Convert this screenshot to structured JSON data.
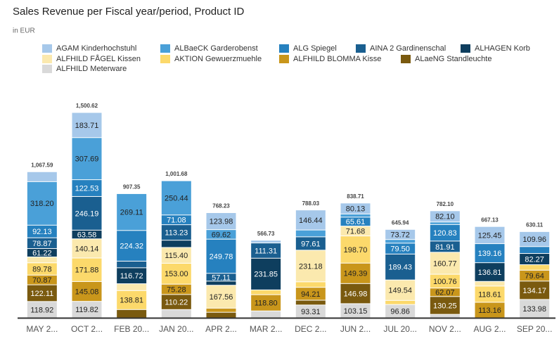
{
  "chart_data": {
    "type": "stacked_bar",
    "title": "Sales Revenue per Fiscal year/period, Product ID",
    "subtitle": "in EUR",
    "categories": [
      "MAY 2...",
      "OCT 2...",
      "FEB 20...",
      "JAN 20...",
      "APR 2...",
      "MAR 2...",
      "DEC 2...",
      "JUN 2...",
      "JUL 20...",
      "NOV 2...",
      "AUG 2...",
      "SEP 20..."
    ],
    "totals": [
      1067.59,
      1500.62,
      907.35,
      1001.68,
      768.23,
      566.73,
      788.03,
      838.71,
      645.94,
      782.1,
      667.13,
      630.11
    ],
    "total_labels": [
      "1,067.59",
      "1,500.62",
      "907.35",
      "1,001.68",
      "768.23",
      "566.73",
      "788.03",
      "838.71",
      "645.94",
      "782.10",
      "667.13",
      "630.11"
    ],
    "series": [
      {
        "name": "AGAM Kinderhochstuhl",
        "color": "#a6c8ea",
        "values": [
          72.49,
          183.71,
          null,
          null,
          123.98,
          20,
          146.44,
          80.13,
          73.72,
          82.1,
          125.45,
          109.96
        ],
        "value_labels": [
          null,
          "183.71",
          null,
          null,
          "123.98",
          null,
          "146.44",
          "80.13",
          "73.72",
          "82.10",
          "125.45",
          "109.96"
        ]
      },
      {
        "name": "ALBaeCK Garderobenst",
        "color": "#4aa0d8",
        "values": [
          318.2,
          307.69,
          269.11,
          250.44,
          69.62,
          null,
          50,
          23.07,
          26.89,
          18.41,
          null,
          null
        ],
        "value_labels": [
          "318.20",
          "307.69",
          "269.11",
          "250.44",
          "69.62",
          null,
          null,
          null,
          null,
          null,
          null,
          null
        ]
      },
      {
        "name": "ALG Spiegel",
        "color": "#2681bf",
        "values": [
          92.13,
          122.53,
          224.32,
          71.08,
          249.78,
          null,
          null,
          65.61,
          79.5,
          120.83,
          139.16,
          50.09
        ],
        "value_labels": [
          "92.13",
          "122.53",
          "224.32",
          "71.08",
          "249.78",
          null,
          null,
          "65.61",
          "79.50",
          "120.83",
          "139.16",
          null
        ]
      },
      {
        "name": "AINA 2 Gardinenschal",
        "color": "#1a5f90",
        "values": [
          78.87,
          246.19,
          48.39,
          113.23,
          57.11,
          111.31,
          97.61,
          null,
          189.43,
          81.91,
          null,
          null
        ],
        "value_labels": [
          "78.87",
          "246.19",
          null,
          "113.23",
          "57.11",
          "111.31",
          "97.61",
          null,
          "189.43",
          "81.91",
          null,
          null
        ]
      },
      {
        "name": "ALHAGEN Korb",
        "color": "#0e3e5e",
        "values": [
          61.22,
          63.58,
          116.72,
          53.03,
          30,
          231.85,
          null,
          null,
          null,
          null,
          136.81,
          82.27
        ],
        "value_labels": [
          "61.22",
          "63.58",
          "116.72",
          null,
          null,
          "231.85",
          null,
          null,
          null,
          null,
          "136.81",
          "82.27"
        ]
      },
      {
        "name": "ALFHILD FÅGEL Kissen",
        "color": "#fbe9ae",
        "values": [
          43,
          140.14,
          50,
          115.4,
          167.56,
          null,
          231.18,
          71.68,
          149.54,
          160.77,
          33.94,
          null
        ],
        "value_labels": [
          null,
          "140.14",
          null,
          "115.40",
          "167.56",
          null,
          "231.18",
          "71.68",
          "149.54",
          "160.77",
          null,
          null
        ]
      },
      {
        "name": "AKTION Gewuerzmuehle",
        "color": "#fcd96b",
        "values": [
          89.78,
          171.88,
          138.81,
          153.0,
          null,
          34.77,
          40.28,
          198.7,
          30,
          100.76,
          118.61,
          40
        ],
        "value_labels": [
          "89.78",
          "171.88",
          "138.81",
          "153.00",
          null,
          null,
          null,
          "198.70",
          null,
          "100.76",
          "118.61",
          null
        ]
      },
      {
        "name": "ALFHILD BLOMMA Kisse",
        "color": "#c9961b",
        "values": [
          70.87,
          145.08,
          null,
          75.28,
          30,
          118.8,
          94.21,
          149.39,
          null,
          62.07,
          113.16,
          79.64
        ],
        "value_labels": [
          "70.87",
          "145.08",
          null,
          "75.28",
          null,
          "118.80",
          "94.21",
          "149.39",
          null,
          "62.07",
          "113.16",
          "79.64"
        ]
      },
      {
        "name": "ALaeNG Standleuchte",
        "color": "#7a5a0f",
        "values": [
          122.11,
          null,
          60,
          110.22,
          40.18,
          null,
          35,
          146.98,
          null,
          130.25,
          null,
          134.17
        ],
        "value_labels": [
          "122.11",
          null,
          null,
          "110.22",
          null,
          null,
          null,
          "146.98",
          null,
          "130.25",
          null,
          "134.17"
        ]
      },
      {
        "name": "ALFHILD Meterware",
        "color": "#d9d9d9",
        "values": [
          118.92,
          119.82,
          null,
          60,
          null,
          50,
          93.31,
          103.15,
          96.86,
          25,
          null,
          133.98
        ],
        "value_labels": [
          "118.92",
          "119.82",
          null,
          null,
          null,
          null,
          "93.31",
          "103.15",
          "96.86",
          null,
          null,
          "133.98"
        ]
      }
    ]
  }
}
